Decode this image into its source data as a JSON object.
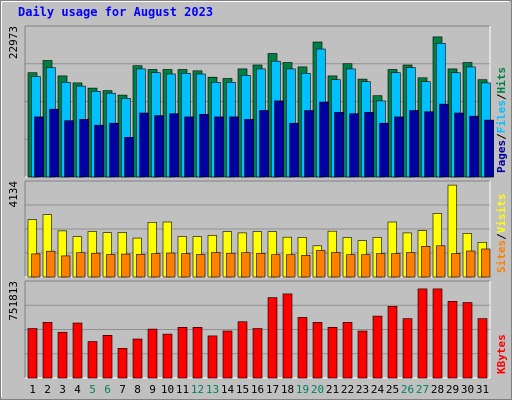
{
  "title": "Daily usage for August 2023",
  "chart_data": [
    {
      "type": "bar",
      "panel": "top",
      "categories": [
        "1",
        "2",
        "3",
        "4",
        "5",
        "6",
        "7",
        "8",
        "9",
        "10",
        "11",
        "12",
        "13",
        "14",
        "15",
        "16",
        "17",
        "18",
        "19",
        "20",
        "21",
        "22",
        "23",
        "24",
        "25",
        "26",
        "27",
        "28",
        "29",
        "30",
        "31"
      ],
      "y_max_label": "22973",
      "ylim": [
        0,
        22973
      ],
      "legend": [
        "Pages",
        "Files",
        "Hits"
      ],
      "legend_separator": "/",
      "series": [
        {
          "name": "Hits",
          "color": "#008040",
          "values": [
            16300,
            18200,
            15800,
            14700,
            13900,
            13500,
            12800,
            17400,
            16800,
            16800,
            16800,
            16600,
            15600,
            15400,
            16900,
            17500,
            19300,
            17900,
            17200,
            21100,
            15800,
            17700,
            15300,
            12700,
            16800,
            17500,
            15500,
            21900,
            16900,
            17900,
            15200
          ]
        },
        {
          "name": "Files",
          "color": "#00c0ff",
          "values": [
            15700,
            17100,
            14800,
            14200,
            13400,
            13100,
            12300,
            16900,
            16300,
            16100,
            16200,
            16100,
            14800,
            14800,
            15900,
            16900,
            18100,
            16900,
            16200,
            20000,
            15200,
            16900,
            14900,
            11900,
            16300,
            17100,
            14900,
            20900,
            16300,
            17200,
            14700
          ]
        },
        {
          "name": "Pages",
          "color": "#0000a0",
          "values": [
            9400,
            10600,
            8800,
            9000,
            8100,
            8400,
            6200,
            10000,
            9600,
            9900,
            9400,
            9800,
            9400,
            9400,
            9000,
            10400,
            11900,
            8400,
            10400,
            11700,
            10100,
            9900,
            10100,
            8400,
            9400,
            10400,
            10200,
            11400,
            10000,
            9500,
            8900
          ]
        }
      ]
    },
    {
      "type": "bar",
      "panel": "middle",
      "categories": [
        "1",
        "2",
        "3",
        "4",
        "5",
        "6",
        "7",
        "8",
        "9",
        "10",
        "11",
        "12",
        "13",
        "14",
        "15",
        "16",
        "17",
        "18",
        "19",
        "20",
        "21",
        "22",
        "23",
        "24",
        "25",
        "26",
        "27",
        "28",
        "29",
        "30",
        "31"
      ],
      "y_max_label": "4134",
      "ylim": [
        0,
        4134
      ],
      "legend": [
        "Sites",
        "Visits"
      ],
      "legend_separator": "/",
      "series": [
        {
          "name": "Visits",
          "color": "#ffff00",
          "values": [
            2580,
            2800,
            2070,
            1810,
            2050,
            1990,
            2000,
            1750,
            2460,
            2470,
            1820,
            1810,
            1870,
            2040,
            1980,
            2040,
            2040,
            1790,
            1780,
            1400,
            2060,
            1770,
            1630,
            1780,
            2470,
            1980,
            2080,
            2860,
            4130,
            1960,
            1560
          ]
        },
        {
          "name": "Sites",
          "color": "#ff8000",
          "values": [
            1040,
            1160,
            950,
            1090,
            1070,
            1010,
            1030,
            1020,
            1050,
            1080,
            1050,
            1010,
            1100,
            1070,
            1090,
            1060,
            1000,
            1000,
            970,
            1190,
            1100,
            1000,
            1000,
            1050,
            1050,
            1100,
            1380,
            1400,
            1050,
            1170,
            1260
          ]
        }
      ]
    },
    {
      "type": "bar",
      "panel": "bottom",
      "categories": [
        "1",
        "2",
        "3",
        "4",
        "5",
        "6",
        "7",
        "8",
        "9",
        "10",
        "11",
        "12",
        "13",
        "14",
        "15",
        "16",
        "17",
        "18",
        "19",
        "20",
        "21",
        "22",
        "23",
        "24",
        "25",
        "26",
        "27",
        "28",
        "29",
        "30",
        "31"
      ],
      "y_max_label": "751813",
      "ylim": [
        0,
        751813
      ],
      "legend": [
        "KBytes"
      ],
      "series": [
        {
          "name": "KBytes",
          "color": "#ff0000",
          "values": [
            400000,
            450000,
            370000,
            445000,
            295000,
            345000,
            240000,
            315000,
            395000,
            355000,
            410000,
            410000,
            340000,
            380000,
            455000,
            400000,
            650000,
            680000,
            490000,
            450000,
            410000,
            450000,
            380000,
            500000,
            580000,
            480000,
            720000,
            720000,
            620000,
            610000,
            480000
          ]
        }
      ]
    }
  ],
  "weekend_days": [
    "5",
    "6",
    "12",
    "13",
    "19",
    "20",
    "26",
    "27"
  ],
  "colors": {
    "background": "#c0c0c0",
    "plot_bg": "#c0c0c0",
    "title": "#0000ff",
    "weekday_label": "#000000",
    "weekend_label": "#00805f"
  }
}
